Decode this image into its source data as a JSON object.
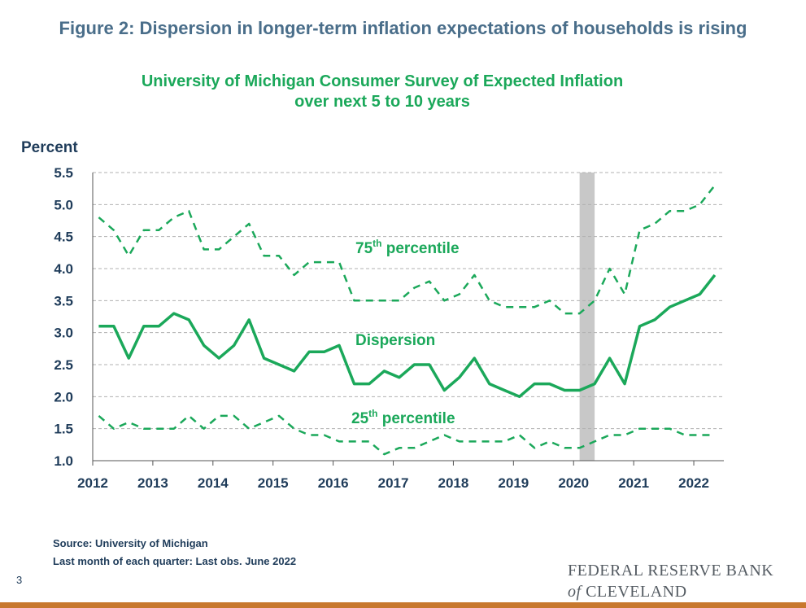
{
  "figure_title": "Figure 2: Dispersion in longer-term inflation expectations of households is rising",
  "page_number": "3",
  "source_line1": "Source: University of Michigan",
  "source_line2": "Last month of each quarter: Last obs. June 2022",
  "logo": {
    "line1": "FEDERAL RESERVE BANK",
    "of": "of",
    "line2": "CLEVELAND"
  },
  "colors": {
    "series": "#1ba85a",
    "title": "#4a6e8a",
    "axis_text": "#1f3c5a",
    "recession": "#c8c8c8",
    "bottom_bar": "#c8782e"
  },
  "chart_data": {
    "type": "line",
    "title_line1": "University of Michigan Consumer Survey of Expected Inflation",
    "title_line2": "over next 5 to 10 years",
    "ylabel": "Percent",
    "ylim": [
      1.0,
      5.5
    ],
    "yticks": [
      "1.0",
      "1.5",
      "2.0",
      "2.5",
      "3.0",
      "3.5",
      "4.0",
      "4.5",
      "5.0",
      "5.5"
    ],
    "xlim": [
      2012.0,
      2022.5
    ],
    "xticks": [
      "2012",
      "2013",
      "2014",
      "2015",
      "2016",
      "2017",
      "2018",
      "2019",
      "2020",
      "2021",
      "2022"
    ],
    "grid": true,
    "recession_band": [
      2020.1,
      2020.35
    ],
    "x": [
      2012.1,
      2012.35,
      2012.6,
      2012.85,
      2013.1,
      2013.35,
      2013.6,
      2013.85,
      2014.1,
      2014.35,
      2014.6,
      2014.85,
      2015.1,
      2015.35,
      2015.6,
      2015.85,
      2016.1,
      2016.35,
      2016.6,
      2016.85,
      2017.1,
      2017.35,
      2017.6,
      2017.85,
      2018.1,
      2018.35,
      2018.6,
      2018.85,
      2019.1,
      2019.35,
      2019.6,
      2019.85,
      2020.1,
      2020.35,
      2020.6,
      2020.85,
      2021.1,
      2021.35,
      2021.6,
      2021.85,
      2022.1,
      2022.35
    ],
    "series": [
      {
        "name": "75th percentile",
        "label_sup": "th",
        "label_suffix": " percentile",
        "label_num": "75",
        "style": "dashed",
        "values": [
          4.8,
          4.6,
          4.2,
          4.6,
          4.6,
          4.8,
          4.9,
          4.3,
          4.3,
          4.5,
          4.7,
          4.2,
          4.2,
          3.9,
          4.1,
          4.1,
          4.1,
          3.5,
          3.5,
          3.5,
          3.5,
          3.7,
          3.8,
          3.5,
          3.6,
          3.9,
          3.5,
          3.4,
          3.4,
          3.4,
          3.5,
          3.3,
          3.3,
          3.5,
          4.0,
          3.6,
          4.6,
          4.7,
          4.9,
          4.9,
          5.0,
          5.3
        ]
      },
      {
        "name": "Dispersion",
        "style": "solid",
        "values": [
          3.1,
          3.1,
          2.6,
          3.1,
          3.1,
          3.3,
          3.2,
          2.8,
          2.6,
          2.8,
          3.2,
          2.6,
          2.5,
          2.4,
          2.7,
          2.7,
          2.8,
          2.2,
          2.2,
          2.4,
          2.3,
          2.5,
          2.5,
          2.1,
          2.3,
          2.6,
          2.2,
          2.1,
          2.0,
          2.2,
          2.2,
          2.1,
          2.1,
          2.2,
          2.6,
          2.2,
          3.1,
          3.2,
          3.4,
          3.5,
          3.6,
          3.9
        ]
      },
      {
        "name": "25th percentile",
        "label_sup": "th",
        "label_suffix": " percentile",
        "label_num": "25",
        "style": "dashed",
        "values": [
          1.7,
          1.5,
          1.6,
          1.5,
          1.5,
          1.5,
          1.7,
          1.5,
          1.7,
          1.7,
          1.5,
          1.6,
          1.7,
          1.5,
          1.4,
          1.4,
          1.3,
          1.3,
          1.3,
          1.1,
          1.2,
          1.2,
          1.3,
          1.4,
          1.3,
          1.3,
          1.3,
          1.3,
          1.4,
          1.2,
          1.3,
          1.2,
          1.2,
          1.3,
          1.4,
          1.4,
          1.5,
          1.5,
          1.5,
          1.4,
          1.4,
          1.4
        ]
      }
    ]
  }
}
